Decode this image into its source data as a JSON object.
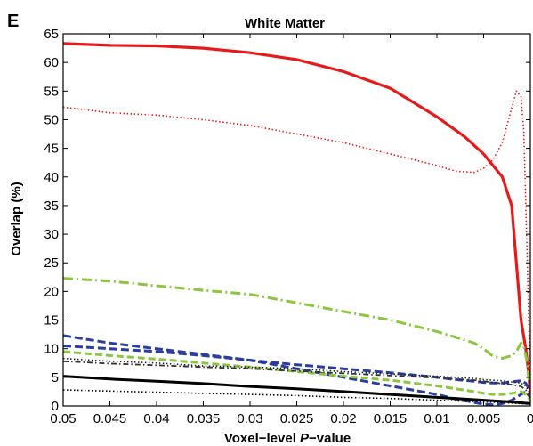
{
  "panel_label": "E",
  "chart_data": {
    "type": "line",
    "title": "White Matter",
    "xlabel_prefix": "Voxel−level ",
    "xlabel_italic": "P",
    "xlabel_suffix": "−value",
    "ylabel": "Overlap (%)",
    "xlim": [
      0.05,
      0
    ],
    "ylim": [
      0,
      65
    ],
    "x_reversed": true,
    "grid": false,
    "xticks": [
      0.05,
      0.045,
      0.04,
      0.035,
      0.03,
      0.025,
      0.02,
      0.015,
      0.01,
      0.005,
      0
    ],
    "xtick_labels": [
      "0.05",
      "0.045",
      "0.04",
      "0.035",
      "0.03",
      "0.025",
      "0.02",
      "0.015",
      "0.01",
      "0.005",
      "0"
    ],
    "yticks": [
      0,
      5,
      10,
      15,
      20,
      25,
      30,
      35,
      40,
      45,
      50,
      55,
      60,
      65
    ],
    "ytick_labels": [
      "0",
      "5",
      "10",
      "15",
      "20",
      "25",
      "30",
      "35",
      "40",
      "45",
      "50",
      "55",
      "60",
      "65"
    ],
    "series": [
      {
        "color": "#e8191b",
        "dash": "",
        "width": 3.2,
        "x": [
          0.05,
          0.045,
          0.04,
          0.035,
          0.03,
          0.025,
          0.02,
          0.015,
          0.01,
          0.007,
          0.005,
          0.003,
          0.002,
          0.0015,
          0.001,
          0.0005,
          0.0002,
          0
        ],
        "y": [
          63.3,
          63.0,
          62.9,
          62.5,
          61.7,
          60.5,
          58.4,
          55.5,
          50.5,
          47.0,
          44.0,
          40.0,
          35.0,
          25.0,
          15.0,
          10.0,
          6.0,
          2.0
        ]
      },
      {
        "color": "#e8191b",
        "dash": "1.5,2.5",
        "width": 1.6,
        "x": [
          0.05,
          0.045,
          0.04,
          0.035,
          0.03,
          0.025,
          0.02,
          0.015,
          0.01,
          0.008,
          0.006,
          0.005,
          0.004,
          0.003,
          0.002,
          0.0015,
          0.001,
          0.0007,
          0.0004,
          0.0001,
          0
        ],
        "y": [
          52.2,
          51.2,
          50.8,
          50.0,
          49.0,
          47.5,
          46.0,
          44.0,
          42.0,
          41.0,
          40.8,
          41.5,
          43.0,
          46.0,
          52.0,
          55.0,
          54.0,
          48.0,
          30.0,
          10.0,
          3.0
        ]
      },
      {
        "color": "#8cc63f",
        "dash": "11,4,2,4",
        "width": 3,
        "x": [
          0.05,
          0.045,
          0.04,
          0.035,
          0.03,
          0.025,
          0.02,
          0.015,
          0.01,
          0.008,
          0.006,
          0.005,
          0.004,
          0.003,
          0.002,
          0.0015,
          0.001,
          0.0007,
          0.0004,
          0.0002,
          0
        ],
        "y": [
          22.3,
          21.8,
          21.0,
          20.2,
          19.5,
          18.0,
          16.5,
          15.0,
          13.0,
          12.0,
          11.0,
          10.0,
          8.7,
          8.3,
          8.8,
          9.5,
          11.0,
          10.5,
          8.0,
          5.0,
          3.0
        ]
      },
      {
        "color": "#2b3d9e",
        "dash": "9,4",
        "width": 3,
        "x": [
          0.05,
          0.045,
          0.04,
          0.035,
          0.03,
          0.025,
          0.02,
          0.015,
          0.01,
          0.008,
          0.006,
          0.005,
          0.004,
          0.003,
          0.002,
          0.001,
          0.0005,
          0
        ],
        "y": [
          12.3,
          11.0,
          10.0,
          9.0,
          8.0,
          6.5,
          5.0,
          3.5,
          2.0,
          1.2,
          0.6,
          0.3,
          0.2,
          0.4,
          1.0,
          2.0,
          2.5,
          1.5
        ]
      },
      {
        "color": "#2b3d9e",
        "dash": "9,4",
        "width": 3,
        "x": [
          0.05,
          0.045,
          0.04,
          0.035,
          0.03,
          0.025,
          0.02,
          0.015,
          0.01,
          0.008,
          0.006,
          0.005,
          0.004,
          0.003,
          0.002,
          0.001,
          0.0005,
          0
        ],
        "y": [
          10.5,
          10.0,
          9.5,
          8.8,
          8.0,
          7.2,
          6.5,
          5.8,
          5.0,
          4.6,
          4.3,
          4.1,
          4.0,
          4.0,
          4.2,
          4.4,
          4.0,
          2.5
        ]
      },
      {
        "color": "#8cc63f",
        "dash": "8,4",
        "width": 3,
        "x": [
          0.05,
          0.045,
          0.04,
          0.035,
          0.03,
          0.025,
          0.02,
          0.015,
          0.01,
          0.008,
          0.006,
          0.005,
          0.004,
          0.003,
          0.002,
          0.001,
          0.0005,
          0
        ],
        "y": [
          9.5,
          8.8,
          8.2,
          7.5,
          6.8,
          6.0,
          5.2,
          4.5,
          3.5,
          3.0,
          2.5,
          2.2,
          2.0,
          2.0,
          2.2,
          2.5,
          2.0,
          1.0
        ]
      },
      {
        "color": "#222222",
        "dash": "1.5,2.5",
        "width": 1.6,
        "x": [
          0.05,
          0.045,
          0.04,
          0.035,
          0.03,
          0.025,
          0.02,
          0.015,
          0.01,
          0.008,
          0.006,
          0.005,
          0.004,
          0.003,
          0.002,
          0.001,
          0.0005,
          0
        ],
        "y": [
          8.3,
          7.8,
          7.5,
          7.0,
          6.8,
          6.5,
          6.0,
          5.6,
          5.2,
          5.0,
          4.8,
          4.6,
          4.5,
          4.4,
          4.2,
          4.0,
          3.5,
          2.0
        ]
      },
      {
        "color": "#333333",
        "dash": "6,3,1.5,3",
        "width": 1.8,
        "x": [
          0.05,
          0.045,
          0.04,
          0.035,
          0.03,
          0.025,
          0.02,
          0.015,
          0.01,
          0.008,
          0.006,
          0.005,
          0.004,
          0.003,
          0.002,
          0.001,
          0.0005,
          0
        ],
        "y": [
          7.8,
          7.4,
          7.1,
          6.8,
          6.5,
          6.1,
          5.7,
          5.3,
          4.9,
          4.7,
          4.5,
          4.3,
          4.1,
          3.9,
          3.7,
          3.4,
          2.8,
          1.5
        ]
      },
      {
        "color": "#000000",
        "dash": "",
        "width": 3,
        "x": [
          0.05,
          0.045,
          0.04,
          0.035,
          0.03,
          0.025,
          0.02,
          0.015,
          0.01,
          0.005,
          0.002,
          0
        ],
        "y": [
          5.2,
          4.7,
          4.3,
          3.9,
          3.4,
          3.0,
          2.5,
          2.0,
          1.5,
          1.0,
          0.7,
          0.4
        ]
      },
      {
        "color": "#000000",
        "dash": "1.5,2.5",
        "width": 1.6,
        "x": [
          0.05,
          0.045,
          0.04,
          0.035,
          0.03,
          0.025,
          0.02,
          0.015,
          0.01,
          0.005,
          0.002,
          0
        ],
        "y": [
          2.8,
          2.6,
          2.4,
          2.2,
          2.0,
          1.8,
          1.5,
          1.3,
          1.0,
          0.7,
          0.5,
          0.3
        ]
      }
    ]
  }
}
